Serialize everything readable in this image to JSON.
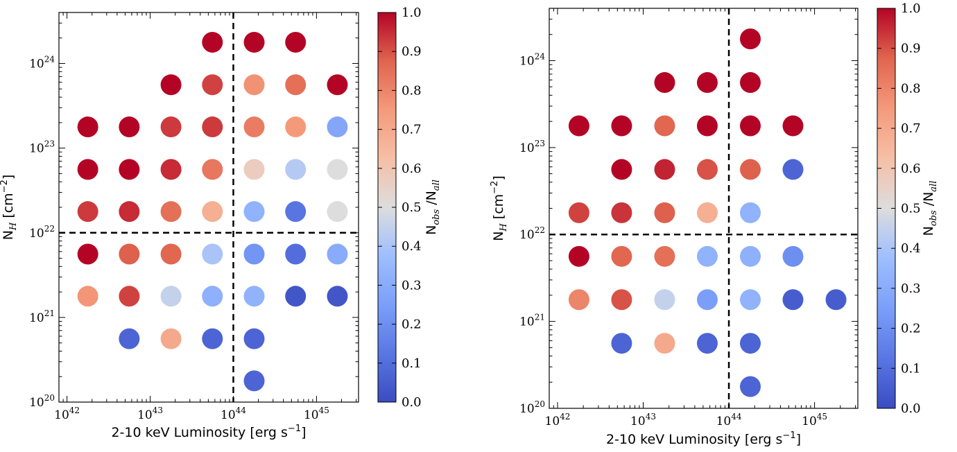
{
  "chart_data": [
    {
      "type": "scatter",
      "xlabel": "2-10 keV Luminosity [erg s",
      "xlabel_exp": "−1",
      "xlabel_close": "]",
      "ylabel": "N",
      "ylabel_sub": "H",
      "ylabel_unit": " [cm",
      "ylabel_exp": "−2",
      "ylabel_close": "]",
      "xscale": "log",
      "yscale": "log",
      "xlim": [
        8e+41,
        3.2e+45
      ],
      "ylim": [
        1e+20,
        4e+24
      ],
      "x_ticks": [
        {
          "base": "10",
          "exp": "42"
        },
        {
          "base": "10",
          "exp": "43"
        },
        {
          "base": "10",
          "exp": "44"
        },
        {
          "base": "10",
          "exp": "45"
        }
      ],
      "y_ticks": [
        {
          "base": "10",
          "exp": "20"
        },
        {
          "base": "10",
          "exp": "21"
        },
        {
          "base": "10",
          "exp": "22"
        },
        {
          "base": "10",
          "exp": "23"
        },
        {
          "base": "10",
          "exp": "24"
        }
      ],
      "x_tick_values": [
        1e+42,
        1e+43,
        1e+44,
        1e+45
      ],
      "y_tick_values": [
        1e+20,
        1e+21,
        1e+22,
        1e+23,
        1e+24
      ],
      "dividers": {
        "x": 1e+44,
        "y": 1e+22
      },
      "colorbar": {
        "label_main": "N",
        "label_sub1": "obs",
        "label_mid": " /N",
        "label_sub2": "all",
        "range": [
          0,
          1
        ],
        "ticks": [
          "0.0",
          "0.1",
          "0.2",
          "0.3",
          "0.4",
          "0.5",
          "0.6",
          "0.7",
          "0.8",
          "0.9",
          "1.0"
        ]
      },
      "points": [
        {
          "x": 5.6e+43,
          "y": 1.78e+24,
          "v": 1.0
        },
        {
          "x": 1.78e+44,
          "y": 1.78e+24,
          "v": 1.0
        },
        {
          "x": 5.6e+44,
          "y": 1.78e+24,
          "v": 1.0
        },
        {
          "x": 1.78e+43,
          "y": 5.6e+23,
          "v": 1.0
        },
        {
          "x": 5.6e+43,
          "y": 5.6e+23,
          "v": 0.92
        },
        {
          "x": 1.78e+44,
          "y": 5.6e+23,
          "v": 0.77
        },
        {
          "x": 5.6e+44,
          "y": 5.6e+23,
          "v": 0.85
        },
        {
          "x": 1.78e+45,
          "y": 5.6e+23,
          "v": 1.0
        },
        {
          "x": 1.78e+42,
          "y": 1.78e+23,
          "v": 1.0
        },
        {
          "x": 5.6e+42,
          "y": 1.78e+23,
          "v": 1.0
        },
        {
          "x": 1.78e+43,
          "y": 1.78e+23,
          "v": 0.93
        },
        {
          "x": 5.6e+43,
          "y": 1.78e+23,
          "v": 0.93
        },
        {
          "x": 1.78e+44,
          "y": 1.78e+23,
          "v": 0.82
        },
        {
          "x": 5.6e+44,
          "y": 1.78e+23,
          "v": 0.75
        },
        {
          "x": 1.78e+45,
          "y": 1.78e+23,
          "v": 0.28
        },
        {
          "x": 1.78e+42,
          "y": 5.6e+22,
          "v": 1.0
        },
        {
          "x": 5.6e+42,
          "y": 5.6e+22,
          "v": 1.0
        },
        {
          "x": 1.78e+43,
          "y": 5.6e+22,
          "v": 0.95
        },
        {
          "x": 5.6e+43,
          "y": 5.6e+22,
          "v": 0.83
        },
        {
          "x": 1.78e+44,
          "y": 5.6e+22,
          "v": 0.57
        },
        {
          "x": 5.6e+44,
          "y": 5.6e+22,
          "v": 0.42
        },
        {
          "x": 1.78e+45,
          "y": 5.6e+22,
          "v": 0.5
        },
        {
          "x": 1.78e+42,
          "y": 1.78e+22,
          "v": 0.93
        },
        {
          "x": 5.6e+42,
          "y": 1.78e+22,
          "v": 0.95
        },
        {
          "x": 1.78e+43,
          "y": 1.78e+22,
          "v": 0.85
        },
        {
          "x": 5.6e+43,
          "y": 1.78e+22,
          "v": 0.68
        },
        {
          "x": 1.78e+44,
          "y": 1.78e+22,
          "v": 0.33
        },
        {
          "x": 5.6e+44,
          "y": 1.78e+22,
          "v": 0.12
        },
        {
          "x": 1.78e+45,
          "y": 1.78e+22,
          "v": 0.5
        },
        {
          "x": 1.78e+42,
          "y": 5.6e+21,
          "v": 1.0
        },
        {
          "x": 5.6e+42,
          "y": 5.6e+21,
          "v": 0.88
        },
        {
          "x": 1.78e+43,
          "y": 5.6e+21,
          "v": 0.87
        },
        {
          "x": 5.6e+43,
          "y": 5.6e+21,
          "v": 0.4
        },
        {
          "x": 1.78e+44,
          "y": 5.6e+21,
          "v": 0.22
        },
        {
          "x": 5.6e+44,
          "y": 5.6e+21,
          "v": 0.1
        },
        {
          "x": 1.78e+45,
          "y": 5.6e+21,
          "v": 0.3
        },
        {
          "x": 1.78e+42,
          "y": 1.78e+21,
          "v": 0.76
        },
        {
          "x": 5.6e+42,
          "y": 1.78e+21,
          "v": 0.92
        },
        {
          "x": 1.78e+43,
          "y": 1.78e+21,
          "v": 0.45
        },
        {
          "x": 5.6e+43,
          "y": 1.78e+21,
          "v": 0.32
        },
        {
          "x": 1.78e+44,
          "y": 1.78e+21,
          "v": 0.33
        },
        {
          "x": 5.6e+44,
          "y": 1.78e+21,
          "v": 0.03
        },
        {
          "x": 1.78e+45,
          "y": 1.78e+21,
          "v": 0.03
        },
        {
          "x": 5.6e+42,
          "y": 5.6e+20,
          "v": 0.07
        },
        {
          "x": 1.78e+43,
          "y": 5.6e+20,
          "v": 0.7
        },
        {
          "x": 5.6e+43,
          "y": 5.6e+20,
          "v": 0.07
        },
        {
          "x": 1.78e+44,
          "y": 5.6e+20,
          "v": 0.07
        },
        {
          "x": 1.78e+44,
          "y": 1.78e+20,
          "v": 0.07
        }
      ]
    },
    {
      "type": "scatter",
      "xlabel": "2-10 keV Luminosity [erg s",
      "xlabel_exp": "−1",
      "xlabel_close": "]",
      "ylabel": "N",
      "ylabel_sub": "H",
      "ylabel_unit": " [cm",
      "ylabel_exp": "−2",
      "ylabel_close": "]",
      "xscale": "log",
      "yscale": "log",
      "xlim": [
        8e+41,
        3.2e+45
      ],
      "ylim": [
        1e+20,
        4e+24
      ],
      "x_ticks": [
        {
          "base": "10",
          "exp": "42"
        },
        {
          "base": "10",
          "exp": "43"
        },
        {
          "base": "10",
          "exp": "44"
        },
        {
          "base": "10",
          "exp": "45"
        }
      ],
      "y_ticks": [
        {
          "base": "10",
          "exp": "20"
        },
        {
          "base": "10",
          "exp": "21"
        },
        {
          "base": "10",
          "exp": "22"
        },
        {
          "base": "10",
          "exp": "23"
        },
        {
          "base": "10",
          "exp": "24"
        }
      ],
      "x_tick_values": [
        1e+42,
        1e+43,
        1e+44,
        1e+45
      ],
      "y_tick_values": [
        1e+20,
        1e+21,
        1e+22,
        1e+23,
        1e+24
      ],
      "dividers": {
        "x": 1e+44,
        "y": 1e+22
      },
      "colorbar": {
        "label_main": "N",
        "label_sub1": "obs",
        "label_mid": " /N",
        "label_sub2": "all",
        "range": [
          0,
          1
        ],
        "ticks": [
          "0.0",
          "0.1",
          "0.2",
          "0.3",
          "0.4",
          "0.5",
          "0.6",
          "0.7",
          "0.8",
          "0.9",
          "1.0"
        ]
      },
      "points": [
        {
          "x": 1.78e+44,
          "y": 1.78e+24,
          "v": 1.0
        },
        {
          "x": 1.78e+43,
          "y": 5.6e+23,
          "v": 1.0
        },
        {
          "x": 5.6e+43,
          "y": 5.6e+23,
          "v": 1.0
        },
        {
          "x": 1.78e+44,
          "y": 5.6e+23,
          "v": 1.0
        },
        {
          "x": 1.78e+42,
          "y": 1.78e+23,
          "v": 1.0
        },
        {
          "x": 5.6e+42,
          "y": 1.78e+23,
          "v": 1.0
        },
        {
          "x": 1.78e+43,
          "y": 1.78e+23,
          "v": 0.87
        },
        {
          "x": 5.6e+43,
          "y": 1.78e+23,
          "v": 1.0
        },
        {
          "x": 1.78e+44,
          "y": 1.78e+23,
          "v": 1.0
        },
        {
          "x": 5.6e+44,
          "y": 1.78e+23,
          "v": 1.0
        },
        {
          "x": 5.6e+42,
          "y": 5.6e+22,
          "v": 1.0
        },
        {
          "x": 1.78e+43,
          "y": 5.6e+22,
          "v": 0.96
        },
        {
          "x": 5.6e+43,
          "y": 5.6e+22,
          "v": 0.9
        },
        {
          "x": 1.78e+44,
          "y": 5.6e+22,
          "v": 0.88
        },
        {
          "x": 5.6e+44,
          "y": 5.6e+22,
          "v": 0.07
        },
        {
          "x": 1.78e+42,
          "y": 1.78e+22,
          "v": 0.92
        },
        {
          "x": 5.6e+42,
          "y": 1.78e+22,
          "v": 0.94
        },
        {
          "x": 1.78e+43,
          "y": 1.78e+22,
          "v": 0.88
        },
        {
          "x": 5.6e+43,
          "y": 1.78e+22,
          "v": 0.68
        },
        {
          "x": 1.78e+44,
          "y": 1.78e+22,
          "v": 0.33
        },
        {
          "x": 1.78e+42,
          "y": 5.6e+21,
          "v": 1.0
        },
        {
          "x": 5.6e+42,
          "y": 5.6e+21,
          "v": 0.87
        },
        {
          "x": 1.78e+43,
          "y": 5.6e+21,
          "v": 0.85
        },
        {
          "x": 5.6e+43,
          "y": 5.6e+21,
          "v": 0.33
        },
        {
          "x": 1.78e+44,
          "y": 5.6e+21,
          "v": 0.32
        },
        {
          "x": 5.6e+44,
          "y": 5.6e+21,
          "v": 0.2
        },
        {
          "x": 1.78e+42,
          "y": 1.78e+21,
          "v": 0.8
        },
        {
          "x": 5.6e+42,
          "y": 1.78e+21,
          "v": 0.9
        },
        {
          "x": 1.78e+43,
          "y": 1.78e+21,
          "v": 0.45
        },
        {
          "x": 5.6e+43,
          "y": 1.78e+21,
          "v": 0.25
        },
        {
          "x": 1.78e+44,
          "y": 1.78e+21,
          "v": 0.33
        },
        {
          "x": 5.6e+44,
          "y": 1.78e+21,
          "v": 0.05
        },
        {
          "x": 1.78e+45,
          "y": 1.78e+21,
          "v": 0.05
        },
        {
          "x": 5.6e+42,
          "y": 5.6e+20,
          "v": 0.07
        },
        {
          "x": 1.78e+43,
          "y": 5.6e+20,
          "v": 0.7
        },
        {
          "x": 5.6e+43,
          "y": 5.6e+20,
          "v": 0.07
        },
        {
          "x": 1.78e+44,
          "y": 5.6e+20,
          "v": 0.07
        },
        {
          "x": 1.78e+44,
          "y": 1.78e+20,
          "v": 0.07
        }
      ]
    }
  ]
}
